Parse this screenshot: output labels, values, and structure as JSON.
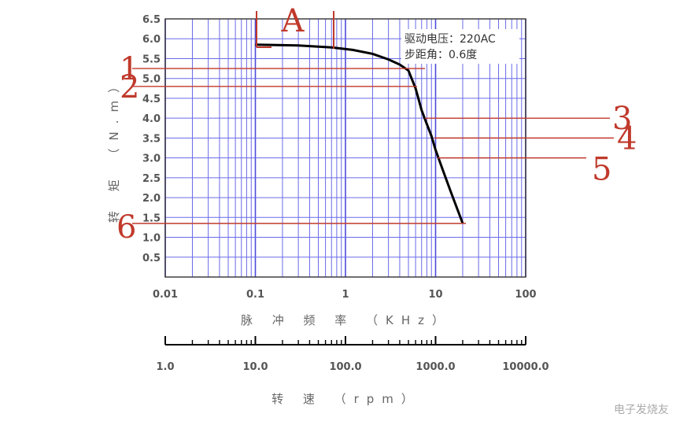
{
  "chart_data": {
    "type": "line",
    "x_scale": "log",
    "xlim": [
      0.01,
      100
    ],
    "ylim": [
      0,
      6.5
    ],
    "x_ticks": [
      "0.01",
      "0.1",
      "1",
      "10",
      "100"
    ],
    "y_ticks": [
      "0.5",
      "1.0",
      "1.5",
      "2.0",
      "2.5",
      "3.0",
      "3.5",
      "4.0",
      "4.5",
      "5.0",
      "5.5",
      "6.0",
      "6.5"
    ],
    "xlabel": "脉 冲 频 率 （KHz）",
    "ylabel": "转 矩 （N.m）",
    "annotation_lines": [
      "驱动电压：220AC",
      "步距角：0.6度"
    ],
    "series": [
      {
        "x": [
          0.1,
          0.3,
          0.7,
          1.2,
          2.0,
          3.0,
          4.0,
          5.0,
          6.0,
          7.0,
          8.0,
          9.0,
          10,
          12,
          15,
          20
        ],
        "y": [
          5.85,
          5.83,
          5.78,
          5.72,
          5.62,
          5.48,
          5.35,
          5.2,
          4.75,
          4.2,
          3.85,
          3.55,
          3.2,
          2.7,
          2.1,
          1.35
        ]
      }
    ],
    "rpm_axis": {
      "label": "转 速 （rpm）",
      "ticks": [
        "1.0",
        "10.0",
        "100.0",
        "1000.0",
        "10000.0"
      ],
      "range": [
        1,
        10000
      ]
    },
    "hand_marks": [
      "A",
      "1",
      "2",
      "3",
      "4",
      "5",
      "6"
    ],
    "hand_levels": {
      "1": 5.25,
      "2": 4.8,
      "3": 4.0,
      "4": 3.5,
      "5": 3.0,
      "6": 1.35
    }
  },
  "watermark": "电子发烧友"
}
